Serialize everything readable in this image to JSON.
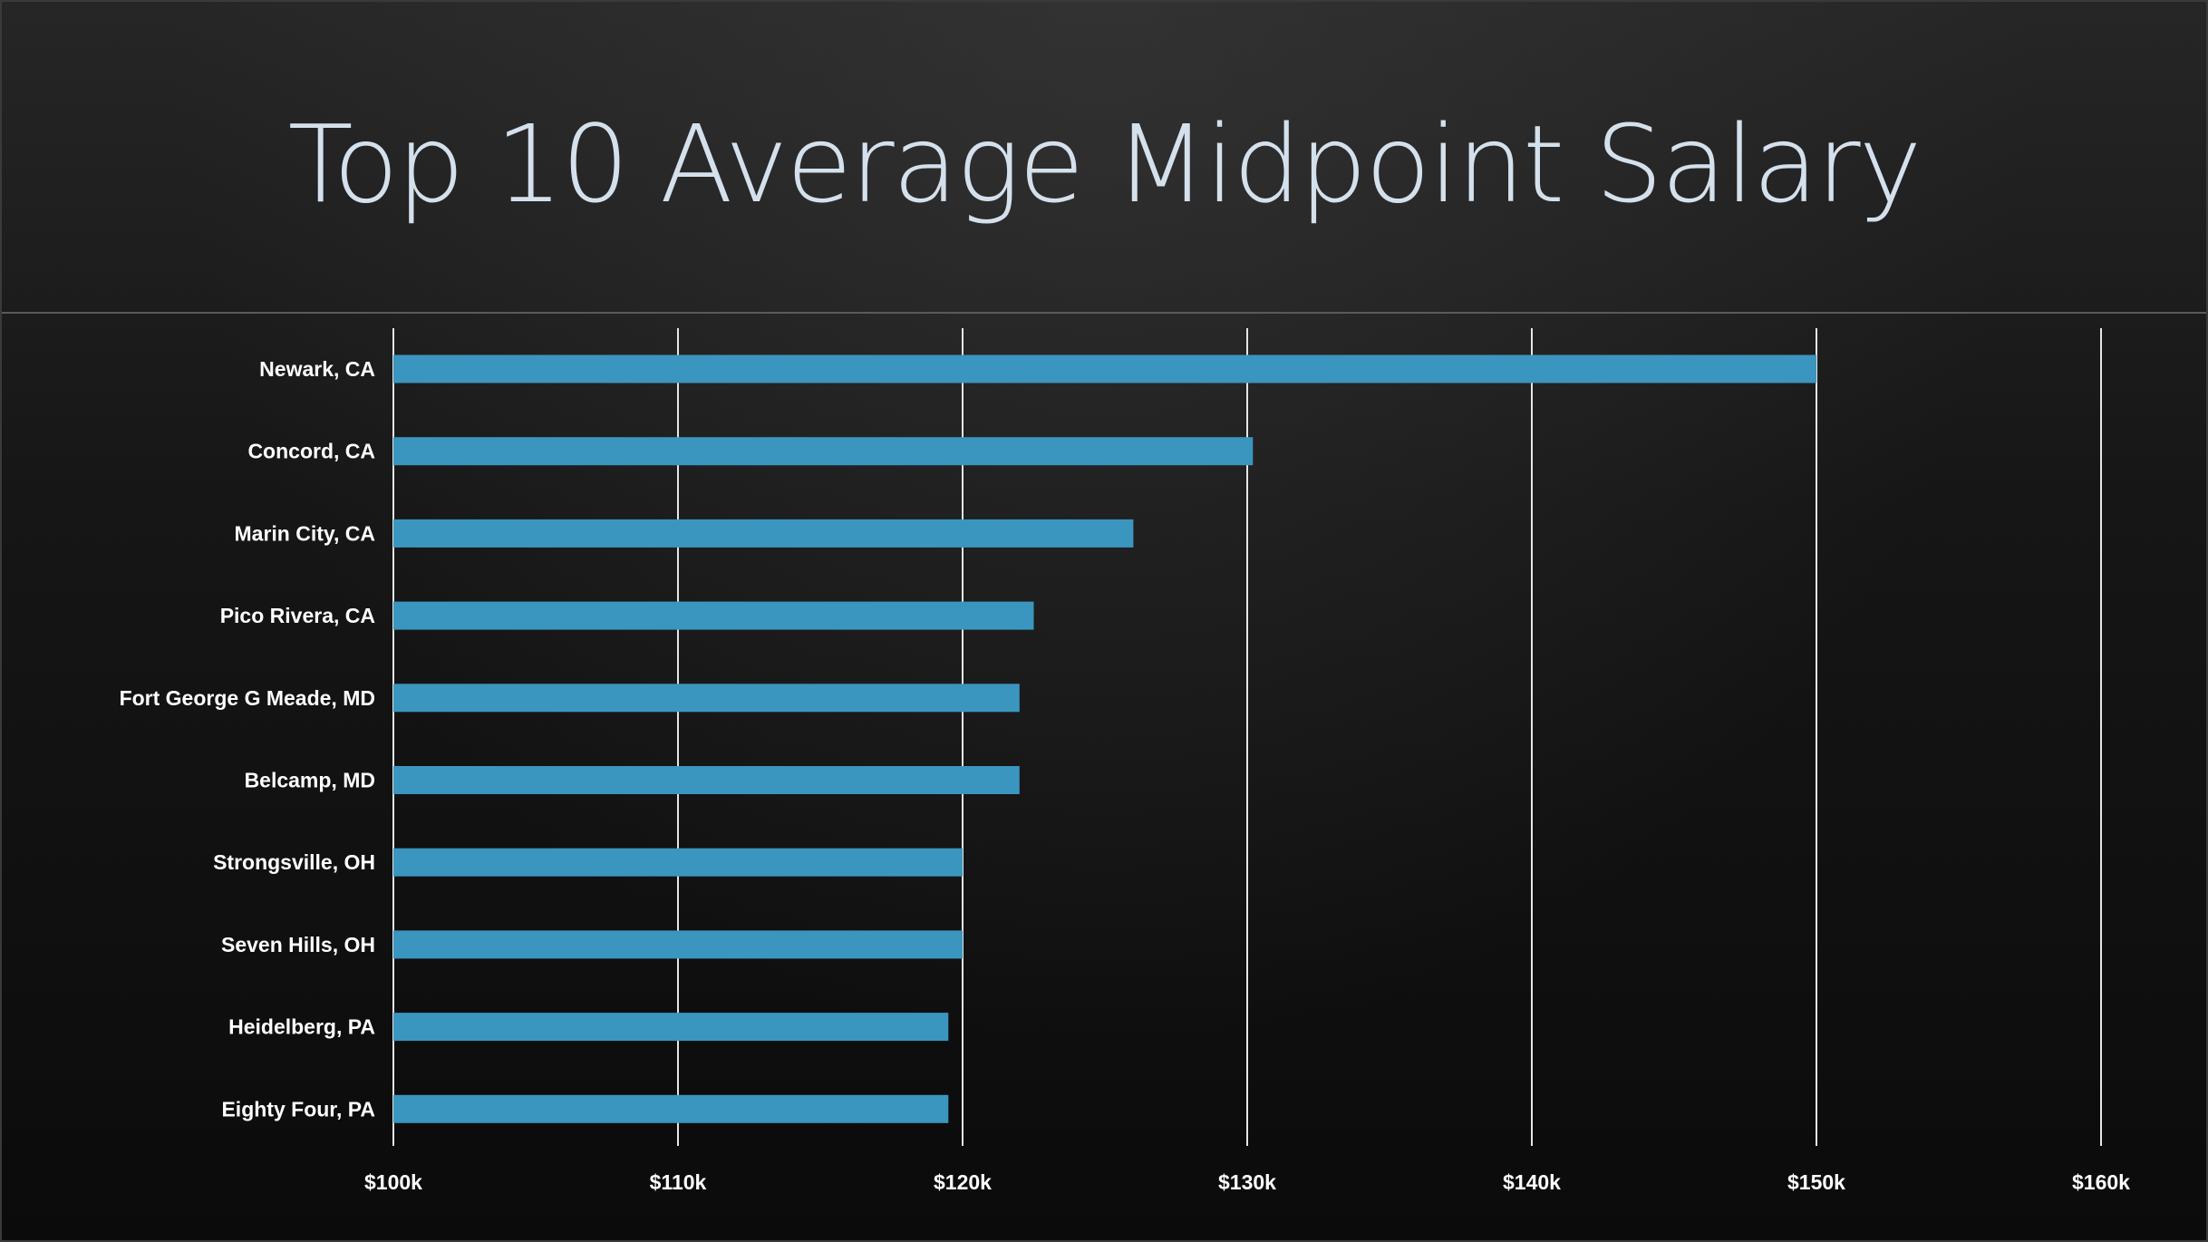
{
  "slide": {
    "title": "Top 10 Average Midpoint Salary"
  },
  "chart_data": {
    "type": "bar",
    "orientation": "horizontal",
    "title": "Top 10 Average Midpoint Salary",
    "xlabel": "",
    "ylabel": "",
    "categories": [
      "Newark, CA",
      "Concord, CA",
      "Marin City, CA",
      "Pico Rivera, CA",
      "Fort George G Meade, MD",
      "Belcamp, MD",
      "Strongsville, OH",
      "Seven Hills, OH",
      "Heidelberg, PA",
      "Eighty Four, PA"
    ],
    "values": [
      150000,
      130200,
      126000,
      122500,
      122000,
      122000,
      120000,
      120000,
      119500,
      119500
    ],
    "xlim": [
      100000,
      160000
    ],
    "xticks": [
      100000,
      110000,
      120000,
      130000,
      140000,
      150000,
      160000
    ],
    "xtick_labels": [
      "$100k",
      "$110k",
      "$120k",
      "$130k",
      "$140k",
      "$150k",
      "$160k"
    ],
    "grid": "vertical",
    "legend": "none",
    "bar_color": "#3a96bf",
    "grid_color": "#e6e6e6"
  }
}
